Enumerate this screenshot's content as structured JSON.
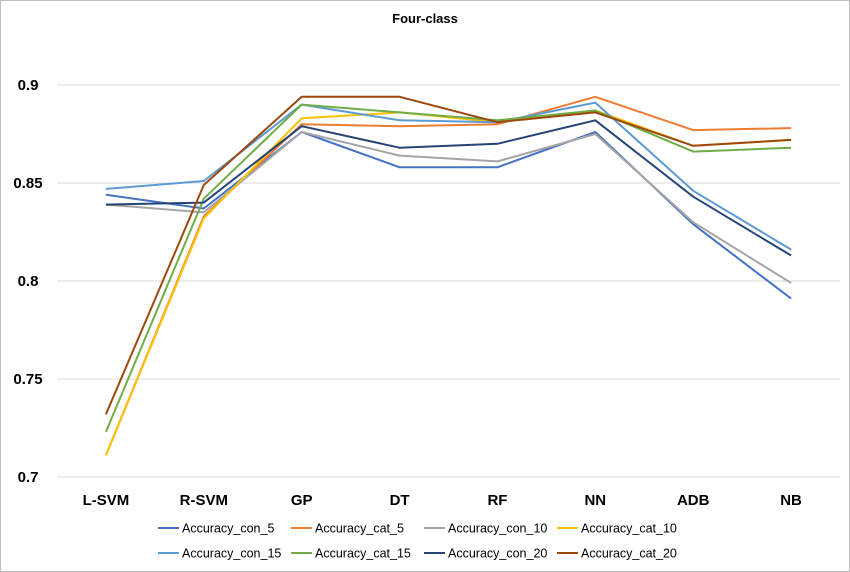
{
  "chart_data": {
    "type": "line",
    "title": "Four-class",
    "xlabel": "",
    "ylabel": "",
    "categories": [
      "L-SVM",
      "R-SVM",
      "GP",
      "DT",
      "RF",
      "NN",
      "ADB",
      "NB"
    ],
    "ylim": [
      0.7,
      0.9
    ],
    "yticks": [
      "0.7",
      "0.75",
      "0.8",
      "0.85",
      "0.9"
    ],
    "grid": "horizontal",
    "legend_position": "bottom",
    "series": [
      {
        "name": "Accuracy_con_5",
        "color": "#4472c4",
        "values": [
          0.844,
          0.837,
          0.876,
          0.858,
          0.858,
          0.876,
          0.829,
          0.791
        ]
      },
      {
        "name": "Accuracy_cat_5",
        "color": "#ed7d31",
        "values": [
          0.711,
          0.833,
          0.88,
          0.879,
          0.88,
          0.894,
          0.877,
          0.878
        ]
      },
      {
        "name": "Accuracy_con_10",
        "color": "#a5a5a5",
        "values": [
          0.839,
          0.835,
          0.876,
          0.864,
          0.861,
          0.875,
          0.83,
          0.799
        ]
      },
      {
        "name": "Accuracy_cat_10",
        "color": "#ffc000",
        "values": [
          0.711,
          0.832,
          0.883,
          0.886,
          0.881,
          0.887,
          0.869,
          0.872
        ]
      },
      {
        "name": "Accuracy_con_15",
        "color": "#5b9bd5",
        "values": [
          0.847,
          0.851,
          0.89,
          0.882,
          0.881,
          0.891,
          0.846,
          0.816
        ]
      },
      {
        "name": "Accuracy_cat_15",
        "color": "#70ad47",
        "values": [
          0.723,
          0.842,
          0.89,
          0.886,
          0.882,
          0.887,
          0.866,
          0.868
        ]
      },
      {
        "name": "Accuracy_con_20",
        "color": "#264478",
        "values": [
          0.839,
          0.84,
          0.879,
          0.868,
          0.87,
          0.882,
          0.843,
          0.813
        ]
      },
      {
        "name": "Accuracy_cat_20",
        "color": "#9e480e",
        "values": [
          0.732,
          0.849,
          0.894,
          0.894,
          0.881,
          0.886,
          0.869,
          0.872
        ]
      }
    ]
  }
}
